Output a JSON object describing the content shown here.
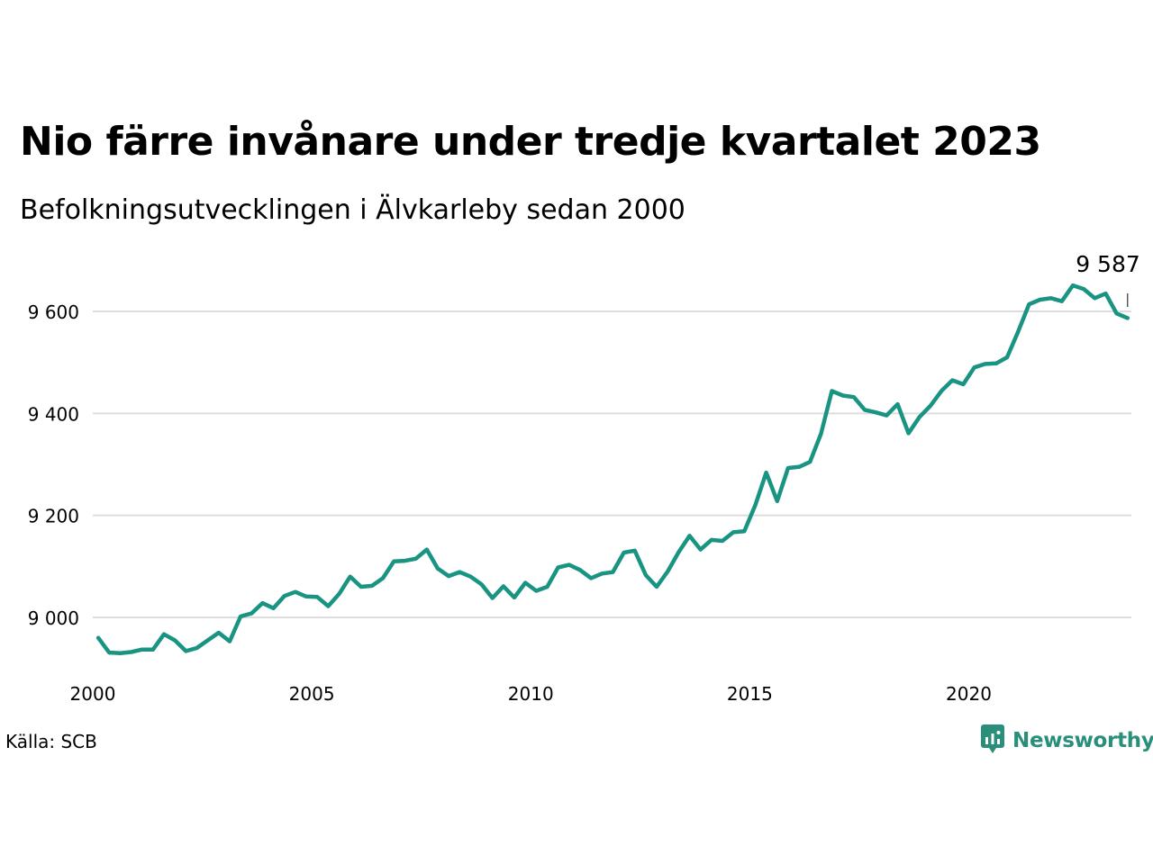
{
  "header": {
    "title": "Nio färre invånare under tredje kvartalet 2023",
    "subtitle": "Befolkningsutvecklingen i Älvkarleby sedan 2000"
  },
  "footer": {
    "source": "Källa: SCB",
    "brand": "Newsworthy",
    "brand_icon": "newsworthy-logo-icon"
  },
  "colors": {
    "line": "#1a9482",
    "grid": "#dddddd",
    "brand": "#2a8f7a"
  },
  "chart_data": {
    "type": "line",
    "title": "Nio färre invånare under tredje kvartalet 2023",
    "subtitle": "Befolkningsutvecklingen i Älvkarleby sedan 2000",
    "xlabel": "",
    "ylabel": "",
    "xlim": [
      2000.0,
      2024.0
    ],
    "ylim": [
      8890,
      9700
    ],
    "x_ticks": [
      2000,
      2005,
      2010,
      2015,
      2020
    ],
    "x_tick_labels": [
      "2000",
      "2005",
      "2010",
      "2015",
      "2020"
    ],
    "y_ticks": [
      9000,
      9200,
      9400,
      9600
    ],
    "y_tick_labels": [
      "9 000",
      "9 200",
      "9 400",
      "9 600"
    ],
    "grid": "horizontal",
    "annotation": {
      "label": "9 587",
      "x": 2023.625,
      "y": 9587
    },
    "series": [
      {
        "values": [
          [
            2000.125,
            8960
          ],
          [
            2000.375,
            8931
          ],
          [
            2000.625,
            8930
          ],
          [
            2000.875,
            8932
          ],
          [
            2001.125,
            8937
          ],
          [
            2001.375,
            8937
          ],
          [
            2001.625,
            8967
          ],
          [
            2001.875,
            8955
          ],
          [
            2002.125,
            8934
          ],
          [
            2002.375,
            8940
          ],
          [
            2002.625,
            8955
          ],
          [
            2002.875,
            8970
          ],
          [
            2003.125,
            8953
          ],
          [
            2003.375,
            9002
          ],
          [
            2003.625,
            9008
          ],
          [
            2003.875,
            9028
          ],
          [
            2004.125,
            9018
          ],
          [
            2004.375,
            9042
          ],
          [
            2004.625,
            9050
          ],
          [
            2004.875,
            9041
          ],
          [
            2005.125,
            9040
          ],
          [
            2005.375,
            9022
          ],
          [
            2005.625,
            9046
          ],
          [
            2005.875,
            9080
          ],
          [
            2006.125,
            9060
          ],
          [
            2006.375,
            9062
          ],
          [
            2006.625,
            9077
          ],
          [
            2006.875,
            9110
          ],
          [
            2007.125,
            9111
          ],
          [
            2007.375,
            9115
          ],
          [
            2007.625,
            9133
          ],
          [
            2007.875,
            9096
          ],
          [
            2008.125,
            9081
          ],
          [
            2008.375,
            9089
          ],
          [
            2008.625,
            9080
          ],
          [
            2008.875,
            9065
          ],
          [
            2009.125,
            9038
          ],
          [
            2009.375,
            9061
          ],
          [
            2009.625,
            9039
          ],
          [
            2009.875,
            9068
          ],
          [
            2010.125,
            9052
          ],
          [
            2010.375,
            9060
          ],
          [
            2010.625,
            9098
          ],
          [
            2010.875,
            9103
          ],
          [
            2011.125,
            9093
          ],
          [
            2011.375,
            9077
          ],
          [
            2011.625,
            9086
          ],
          [
            2011.875,
            9089
          ],
          [
            2012.125,
            9127
          ],
          [
            2012.375,
            9131
          ],
          [
            2012.625,
            9083
          ],
          [
            2012.875,
            9060
          ],
          [
            2013.125,
            9090
          ],
          [
            2013.375,
            9128
          ],
          [
            2013.625,
            9160
          ],
          [
            2013.875,
            9133
          ],
          [
            2014.125,
            9152
          ],
          [
            2014.375,
            9150
          ],
          [
            2014.625,
            9167
          ],
          [
            2014.875,
            9169
          ],
          [
            2015.125,
            9220
          ],
          [
            2015.375,
            9284
          ],
          [
            2015.625,
            9228
          ],
          [
            2015.875,
            9293
          ],
          [
            2016.125,
            9295
          ],
          [
            2016.375,
            9305
          ],
          [
            2016.625,
            9360
          ],
          [
            2016.875,
            9444
          ],
          [
            2017.125,
            9435
          ],
          [
            2017.375,
            9432
          ],
          [
            2017.625,
            9407
          ],
          [
            2017.875,
            9402
          ],
          [
            2018.125,
            9396
          ],
          [
            2018.375,
            9418
          ],
          [
            2018.625,
            9361
          ],
          [
            2018.875,
            9393
          ],
          [
            2019.125,
            9415
          ],
          [
            2019.375,
            9444
          ],
          [
            2019.625,
            9465
          ],
          [
            2019.875,
            9457
          ],
          [
            2020.125,
            9490
          ],
          [
            2020.375,
            9497
          ],
          [
            2020.625,
            9498
          ],
          [
            2020.875,
            9510
          ],
          [
            2021.125,
            9560
          ],
          [
            2021.375,
            9614
          ],
          [
            2021.625,
            9623
          ],
          [
            2021.875,
            9626
          ],
          [
            2022.125,
            9620
          ],
          [
            2022.375,
            9651
          ],
          [
            2022.625,
            9644
          ],
          [
            2022.875,
            9626
          ],
          [
            2023.125,
            9635
          ],
          [
            2023.375,
            9596
          ],
          [
            2023.625,
            9587
          ]
        ]
      }
    ]
  }
}
